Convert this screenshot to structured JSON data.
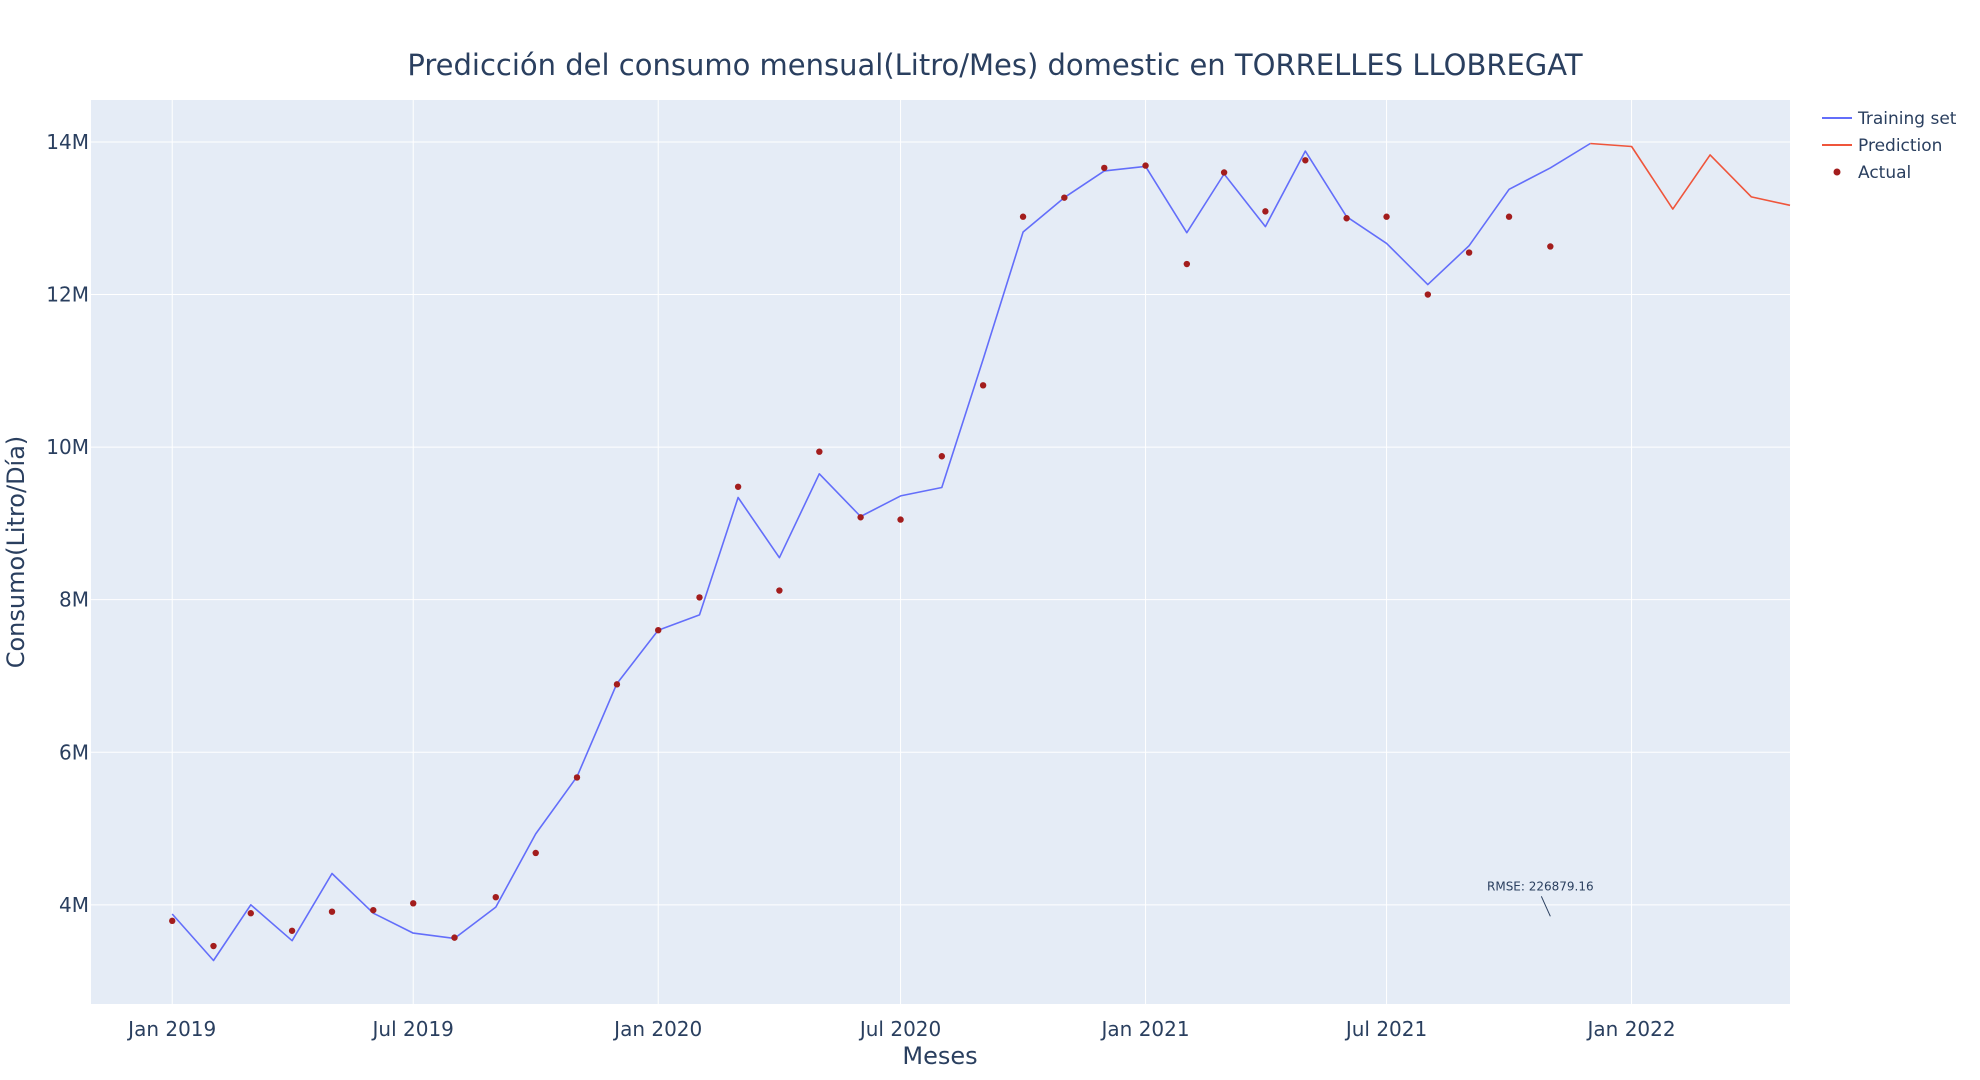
{
  "chart_data": {
    "type": "line",
    "title": "Predicción del consumo mensual(Litro/Mes) domestic en TORRELLES LLOBREGAT",
    "xlabel": "Meses",
    "ylabel": "Consumo(Litro/Día)",
    "x_ticks": [
      "Jan 2019",
      "Jul 2019",
      "Jan 2020",
      "Jul 2020",
      "Jan 2021",
      "Jul 2021",
      "Jan 2022"
    ],
    "y_ticks": [
      "4M",
      "6M",
      "8M",
      "10M",
      "12M",
      "14M"
    ],
    "y_tick_values": [
      4000000,
      6000000,
      8000000,
      10000000,
      12000000,
      14000000
    ],
    "xlim": [
      "2018-11-01",
      "2022-04-30"
    ],
    "ylim": [
      2700000,
      14550000
    ],
    "grid": true,
    "legend_position": "top-right",
    "series": [
      {
        "name": "Training set",
        "type": "line",
        "color": "#636efa",
        "x": [
          "2019-01-01",
          "2019-02-01",
          "2019-03-01",
          "2019-04-01",
          "2019-05-01",
          "2019-06-01",
          "2019-07-01",
          "2019-08-01",
          "2019-09-01",
          "2019-10-01",
          "2019-11-01",
          "2019-12-01",
          "2020-01-01",
          "2020-02-01",
          "2020-03-01",
          "2020-04-01",
          "2020-05-01",
          "2020-06-01",
          "2020-07-01",
          "2020-08-01",
          "2020-09-01",
          "2020-10-01",
          "2020-11-01",
          "2020-12-01",
          "2021-01-01",
          "2021-02-01",
          "2021-03-01",
          "2021-04-01",
          "2021-05-01",
          "2021-06-01",
          "2021-07-01",
          "2021-08-01",
          "2021-09-01",
          "2021-10-01",
          "2021-11-01",
          "2021-12-01"
        ],
        "y": [
          3880000,
          3270000,
          4000000,
          3530000,
          4410000,
          3890000,
          3630000,
          3560000,
          3970000,
          4930000,
          5680000,
          6900000,
          7600000,
          7800000,
          9340000,
          8550000,
          9650000,
          9090000,
          9360000,
          9470000,
          11150000,
          12820000,
          13270000,
          13620000,
          13680000,
          12810000,
          13580000,
          12890000,
          13880000,
          13020000,
          12670000,
          12130000,
          12640000,
          13380000,
          13660000,
          13980000
        ]
      },
      {
        "name": "Prediction",
        "type": "line",
        "color": "#ef553b",
        "x": [
          "2021-12-01",
          "2022-01-01",
          "2022-02-01",
          "2022-03-01",
          "2022-04-01",
          "2022-04-30"
        ],
        "y": [
          13980000,
          13940000,
          13120000,
          13830000,
          13280000,
          13170000
        ]
      },
      {
        "name": "Actual",
        "type": "scatter",
        "color": "#a31d1d",
        "x": [
          "2019-01-01",
          "2019-02-01",
          "2019-03-01",
          "2019-04-01",
          "2019-05-01",
          "2019-06-01",
          "2019-07-01",
          "2019-08-01",
          "2019-09-01",
          "2019-10-01",
          "2019-11-01",
          "2019-12-01",
          "2020-01-01",
          "2020-02-01",
          "2020-03-01",
          "2020-04-01",
          "2020-05-01",
          "2020-06-01",
          "2020-07-01",
          "2020-08-01",
          "2020-09-01",
          "2020-10-01",
          "2020-11-01",
          "2020-12-01",
          "2021-01-01",
          "2021-02-01",
          "2021-03-01",
          "2021-04-01",
          "2021-05-01",
          "2021-06-01",
          "2021-07-01",
          "2021-08-01",
          "2021-09-01",
          "2021-10-01",
          "2021-11-01"
        ],
        "y": [
          3790000,
          3460000,
          3890000,
          3660000,
          3910000,
          3930000,
          4020000,
          3570000,
          4100000,
          4680000,
          5670000,
          6890000,
          7600000,
          8030000,
          9480000,
          8120000,
          9940000,
          9080000,
          9050000,
          9880000,
          10810000,
          13020000,
          13270000,
          13660000,
          13690000,
          12400000,
          13600000,
          13090000,
          13760000,
          13000000,
          13020000,
          12000000,
          12550000,
          13020000,
          12630000
        ]
      }
    ],
    "annotations": [
      {
        "text": "RMSE: 226879.16",
        "x": "2021-11-01",
        "y": 3850000
      }
    ]
  }
}
